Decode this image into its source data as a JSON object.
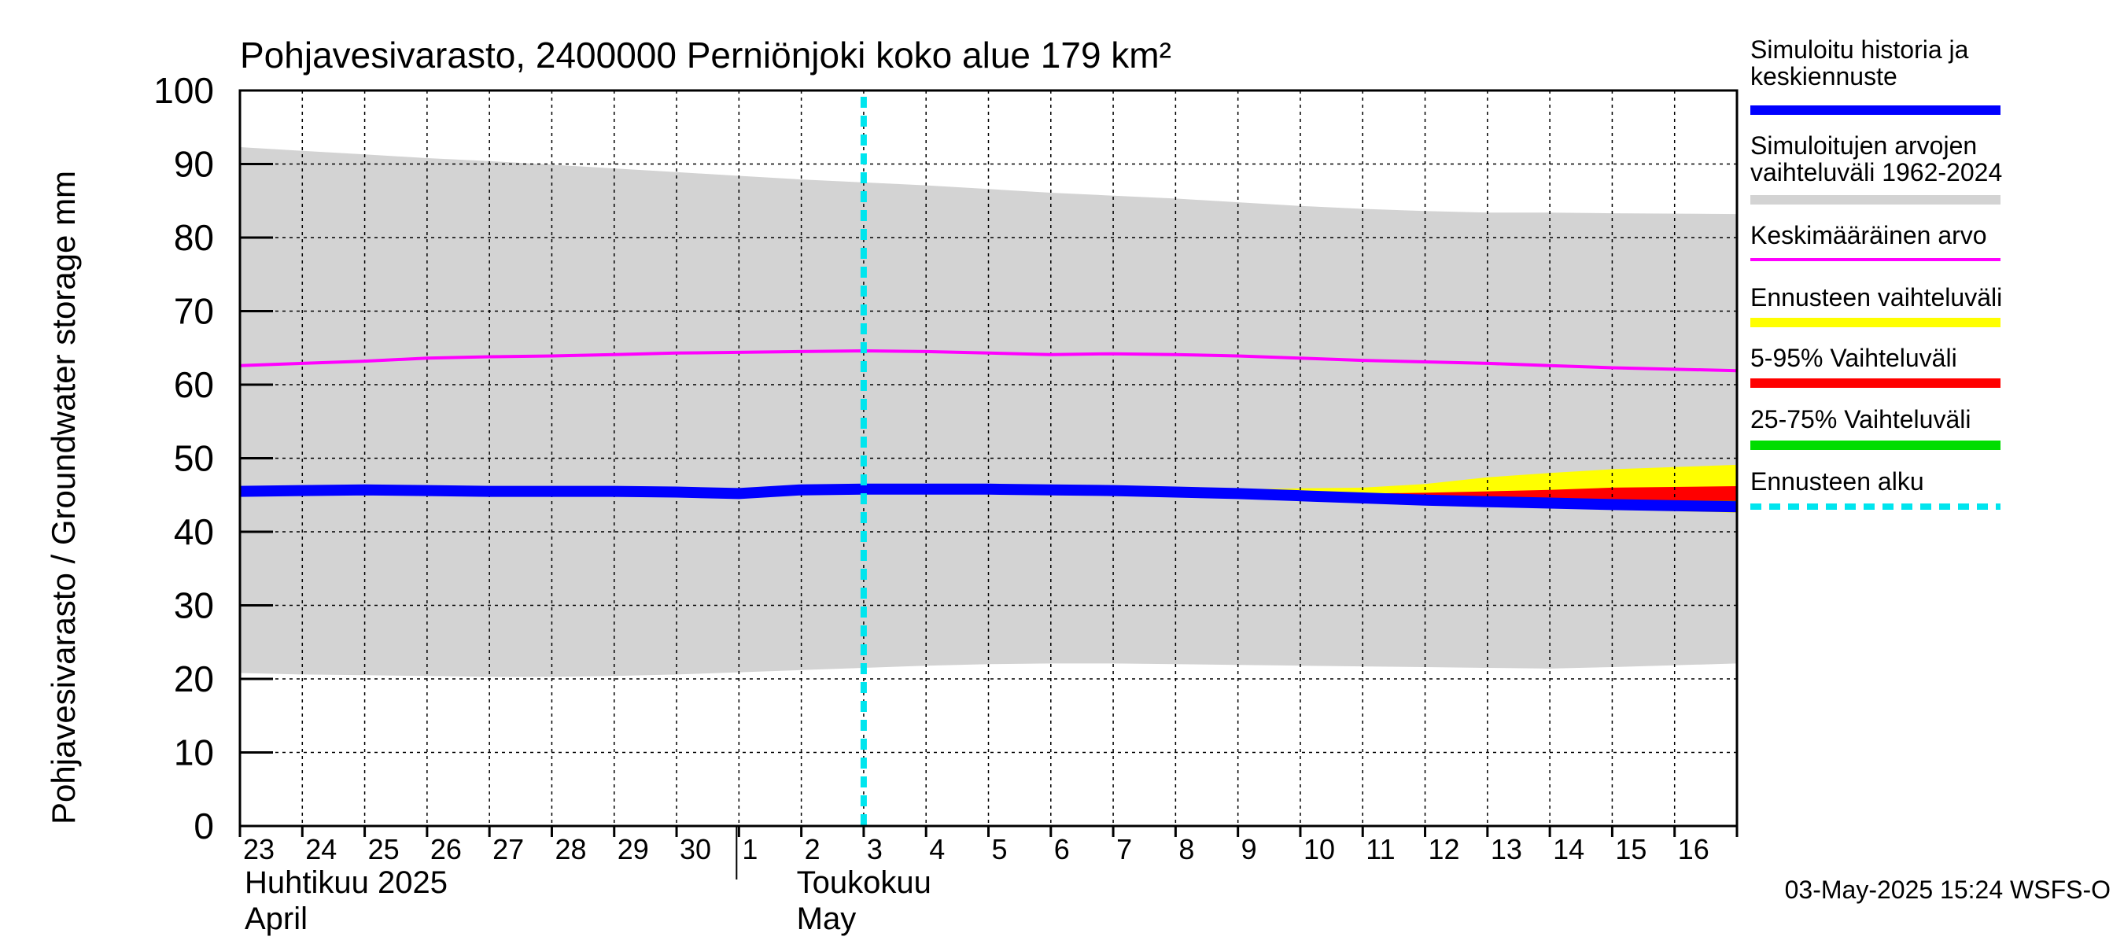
{
  "chart_data": {
    "type": "area",
    "title": "Pohjavesivarasto, 2400000 Perniönjoki koko alue 179 km²",
    "ylabel": "Pohjavesivarasto / Groundwater storage   mm",
    "ylim": [
      0,
      100
    ],
    "yticks": [
      0,
      10,
      20,
      30,
      40,
      50,
      60,
      70,
      80,
      90,
      100
    ],
    "x_day_labels": [
      "23",
      "24",
      "25",
      "26",
      "27",
      "28",
      "29",
      "30",
      "1",
      "2",
      "3",
      "4",
      "5",
      "6",
      "7",
      "8",
      "9",
      "10",
      "11",
      "12",
      "13",
      "14",
      "15",
      "16"
    ],
    "month_labels": [
      {
        "line1": "Huhtikuu  2025",
        "line2": "April"
      },
      {
        "line1": "Toukokuu",
        "line2": "May"
      }
    ],
    "x": [
      "2025-04-23",
      "2025-04-24",
      "2025-04-25",
      "2025-04-26",
      "2025-04-27",
      "2025-04-28",
      "2025-04-29",
      "2025-04-30",
      "2025-05-01",
      "2025-05-02",
      "2025-05-03",
      "2025-05-04",
      "2025-05-05",
      "2025-05-06",
      "2025-05-07",
      "2025-05-08",
      "2025-05-09",
      "2025-05-10",
      "2025-05-11",
      "2025-05-12",
      "2025-05-13",
      "2025-05-14",
      "2025-05-15",
      "2025-05-16"
    ],
    "x_end": "2025-05-17",
    "forecast_start": "2025-05-03",
    "series": [
      {
        "name": "Simuloitujen arvojen vaihteluväli 1962-2024",
        "kind": "band",
        "color": "#d3d3d3",
        "low": [
          20.8,
          20.6,
          20.5,
          20.4,
          20.3,
          20.3,
          20.4,
          20.6,
          20.9,
          21.2,
          21.5,
          21.8,
          22.0,
          22.1,
          22.1,
          22.0,
          21.9,
          21.8,
          21.7,
          21.6,
          21.5,
          21.4,
          21.6,
          22.1
        ],
        "high": [
          92.3,
          91.8,
          91.3,
          90.8,
          90.4,
          89.9,
          89.4,
          88.9,
          88.4,
          87.9,
          87.5,
          87.1,
          86.6,
          86.1,
          85.7,
          85.3,
          84.8,
          84.3,
          83.9,
          83.6,
          83.4,
          83.4,
          83.3,
          83.2
        ]
      },
      {
        "name": "Ennusteen vaihteluväli",
        "kind": "band",
        "color": "#ffff00",
        "low": [
          45.6,
          45.6,
          45.6,
          45.6,
          45.6,
          45.6,
          45.6,
          45.6,
          45.6,
          45.6,
          45.8,
          45.8,
          45.8,
          45.7,
          45.6,
          45.4,
          45.2,
          44.8,
          44.4,
          44.0,
          43.6,
          43.3,
          43.0,
          42.6
        ],
        "high": [
          45.6,
          45.6,
          45.6,
          45.6,
          45.6,
          45.6,
          45.6,
          45.6,
          45.6,
          45.6,
          45.8,
          45.8,
          45.8,
          45.8,
          45.7,
          45.7,
          45.8,
          45.9,
          46.0,
          46.5,
          47.4,
          48.0,
          48.5,
          49.1
        ]
      },
      {
        "name": "5-95% Vaihteluväli",
        "kind": "band",
        "color": "#ff0000",
        "low": [
          45.6,
          45.6,
          45.6,
          45.6,
          45.6,
          45.6,
          45.6,
          45.6,
          45.6,
          45.6,
          45.8,
          45.8,
          45.8,
          45.7,
          45.6,
          45.4,
          45.2,
          44.8,
          44.4,
          44.0,
          43.8,
          43.5,
          43.2,
          42.9
        ],
        "high": [
          45.6,
          45.6,
          45.6,
          45.6,
          45.6,
          45.6,
          45.6,
          45.6,
          45.6,
          45.6,
          45.8,
          45.8,
          45.8,
          45.7,
          45.6,
          45.5,
          45.3,
          45.2,
          45.2,
          45.3,
          45.5,
          45.7,
          46.0,
          46.2
        ]
      },
      {
        "name": "25-75% Vaihteluväli",
        "kind": "band",
        "color": "#00dd00",
        "low": [
          45.6,
          45.6,
          45.6,
          45.6,
          45.6,
          45.6,
          45.6,
          45.6,
          45.6,
          45.6,
          45.8,
          45.8,
          45.8,
          45.7,
          45.6,
          45.4,
          45.2,
          44.9,
          44.6,
          44.3,
          44.1,
          43.9,
          43.7,
          43.5
        ],
        "high": [
          45.6,
          45.6,
          45.6,
          45.6,
          45.6,
          45.6,
          45.6,
          45.6,
          45.6,
          45.6,
          45.8,
          45.8,
          45.8,
          45.7,
          45.6,
          45.4,
          45.2,
          45.0,
          44.8,
          44.6,
          44.5,
          44.4,
          44.3,
          44.2
        ]
      },
      {
        "name": "Keskimääräinen arvo",
        "kind": "line",
        "color": "#ff00ff",
        "width": 4,
        "values": [
          62.6,
          62.9,
          63.2,
          63.6,
          63.8,
          63.9,
          64.1,
          64.3,
          64.4,
          64.5,
          64.6,
          64.5,
          64.3,
          64.1,
          64.2,
          64.1,
          63.9,
          63.6,
          63.3,
          63.1,
          62.9,
          62.6,
          62.3,
          61.9
        ]
      },
      {
        "name": "Simuloitu historia ja keskiennuste",
        "kind": "line",
        "color": "#0000ff",
        "width": 14,
        "values": [
          45.5,
          45.6,
          45.7,
          45.6,
          45.5,
          45.5,
          45.5,
          45.4,
          45.2,
          45.7,
          45.8,
          45.8,
          45.8,
          45.7,
          45.6,
          45.4,
          45.2,
          44.9,
          44.6,
          44.3,
          44.1,
          43.9,
          43.7,
          43.4
        ]
      },
      {
        "name": "Ennusteen alku",
        "kind": "vline",
        "color": "#00e5ee",
        "x": "2025-05-03"
      }
    ],
    "legend": {
      "placement": "right",
      "items": [
        {
          "label": "Simuloitu historia ja keskiennuste",
          "color": "#0000ff",
          "style": "thick"
        },
        {
          "label": "Simuloitujen arvojen vaihteluväli 1962-2024",
          "color": "#d3d3d3",
          "style": "thick"
        },
        {
          "label": "Keskimääräinen arvo",
          "color": "#ff00ff",
          "style": "thin"
        },
        {
          "label": "Ennusteen vaihteluväli",
          "color": "#ffff00",
          "style": "thick"
        },
        {
          "label": "5-95% Vaihteluväli",
          "color": "#ff0000",
          "style": "thick"
        },
        {
          "label": "25-75% Vaihteluväli",
          "color": "#00dd00",
          "style": "thick"
        },
        {
          "label": "Ennusteen alku",
          "color": "#00e5ee",
          "style": "dashed"
        }
      ]
    },
    "grid": true
  },
  "footer": {
    "timestamp": "03-May-2025 15:24 WSFS-O"
  }
}
